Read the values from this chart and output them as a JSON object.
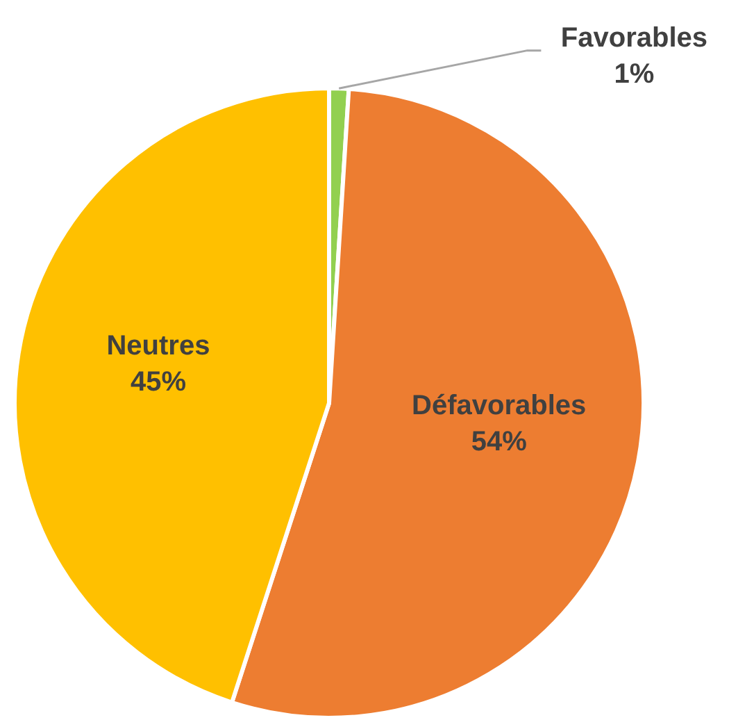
{
  "chart_data": {
    "type": "pie",
    "categories": [
      "Favorables",
      "Défavorables",
      "Neutres"
    ],
    "values": [
      1,
      54,
      45
    ],
    "colors": [
      "#92d050",
      "#ed7d31",
      "#ffc000"
    ],
    "value_labels": [
      "1%",
      "54%",
      "45%"
    ]
  }
}
